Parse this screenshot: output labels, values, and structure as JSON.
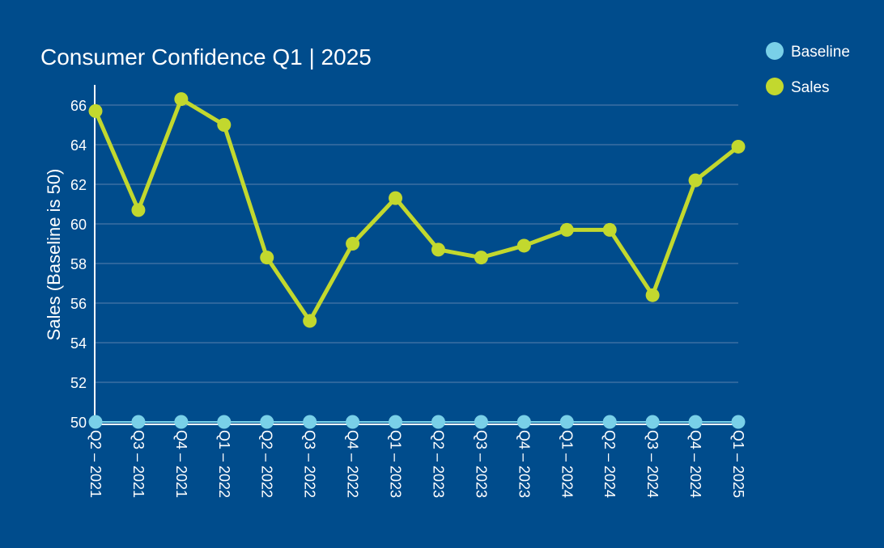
{
  "colors": {
    "background": "#004C8C",
    "baseline": "#79D0E8",
    "sales": "#C2D82E",
    "axis": "#ffffff",
    "grid": "#5a7fae"
  },
  "chart_data": {
    "type": "line",
    "title": "Consumer Confidence Q1 | 2025",
    "xlabel": "",
    "ylabel": "Sales (Baseline is 50)",
    "ylim": [
      50,
      67
    ],
    "yticks": [
      50,
      52,
      54,
      56,
      58,
      60,
      62,
      64,
      66
    ],
    "grid": true,
    "legend_position": "top-right",
    "categories": [
      "Q2 – 2021",
      "Q3 – 2021",
      "Q4 – 2021",
      "Q1 – 2022",
      "Q2 – 2022",
      "Q3 – 2022",
      "Q4 – 2022",
      "Q1 – 2023",
      "Q2 – 2023",
      "Q3 – 2023",
      "Q4 – 2023",
      "Q1 – 2024",
      "Q2 – 2024",
      "Q3 – 2024",
      "Q4 – 2024",
      "Q1 – 2025"
    ],
    "series": [
      {
        "name": "Baseline",
        "color": "#79D0E8",
        "values": [
          50,
          50,
          50,
          50,
          50,
          50,
          50,
          50,
          50,
          50,
          50,
          50,
          50,
          50,
          50,
          50
        ]
      },
      {
        "name": "Sales",
        "color": "#C2D82E",
        "values": [
          65.7,
          60.7,
          66.3,
          65.0,
          58.3,
          55.1,
          59.0,
          61.3,
          58.7,
          58.3,
          58.9,
          59.7,
          59.7,
          56.4,
          62.2,
          63.9
        ]
      }
    ]
  }
}
